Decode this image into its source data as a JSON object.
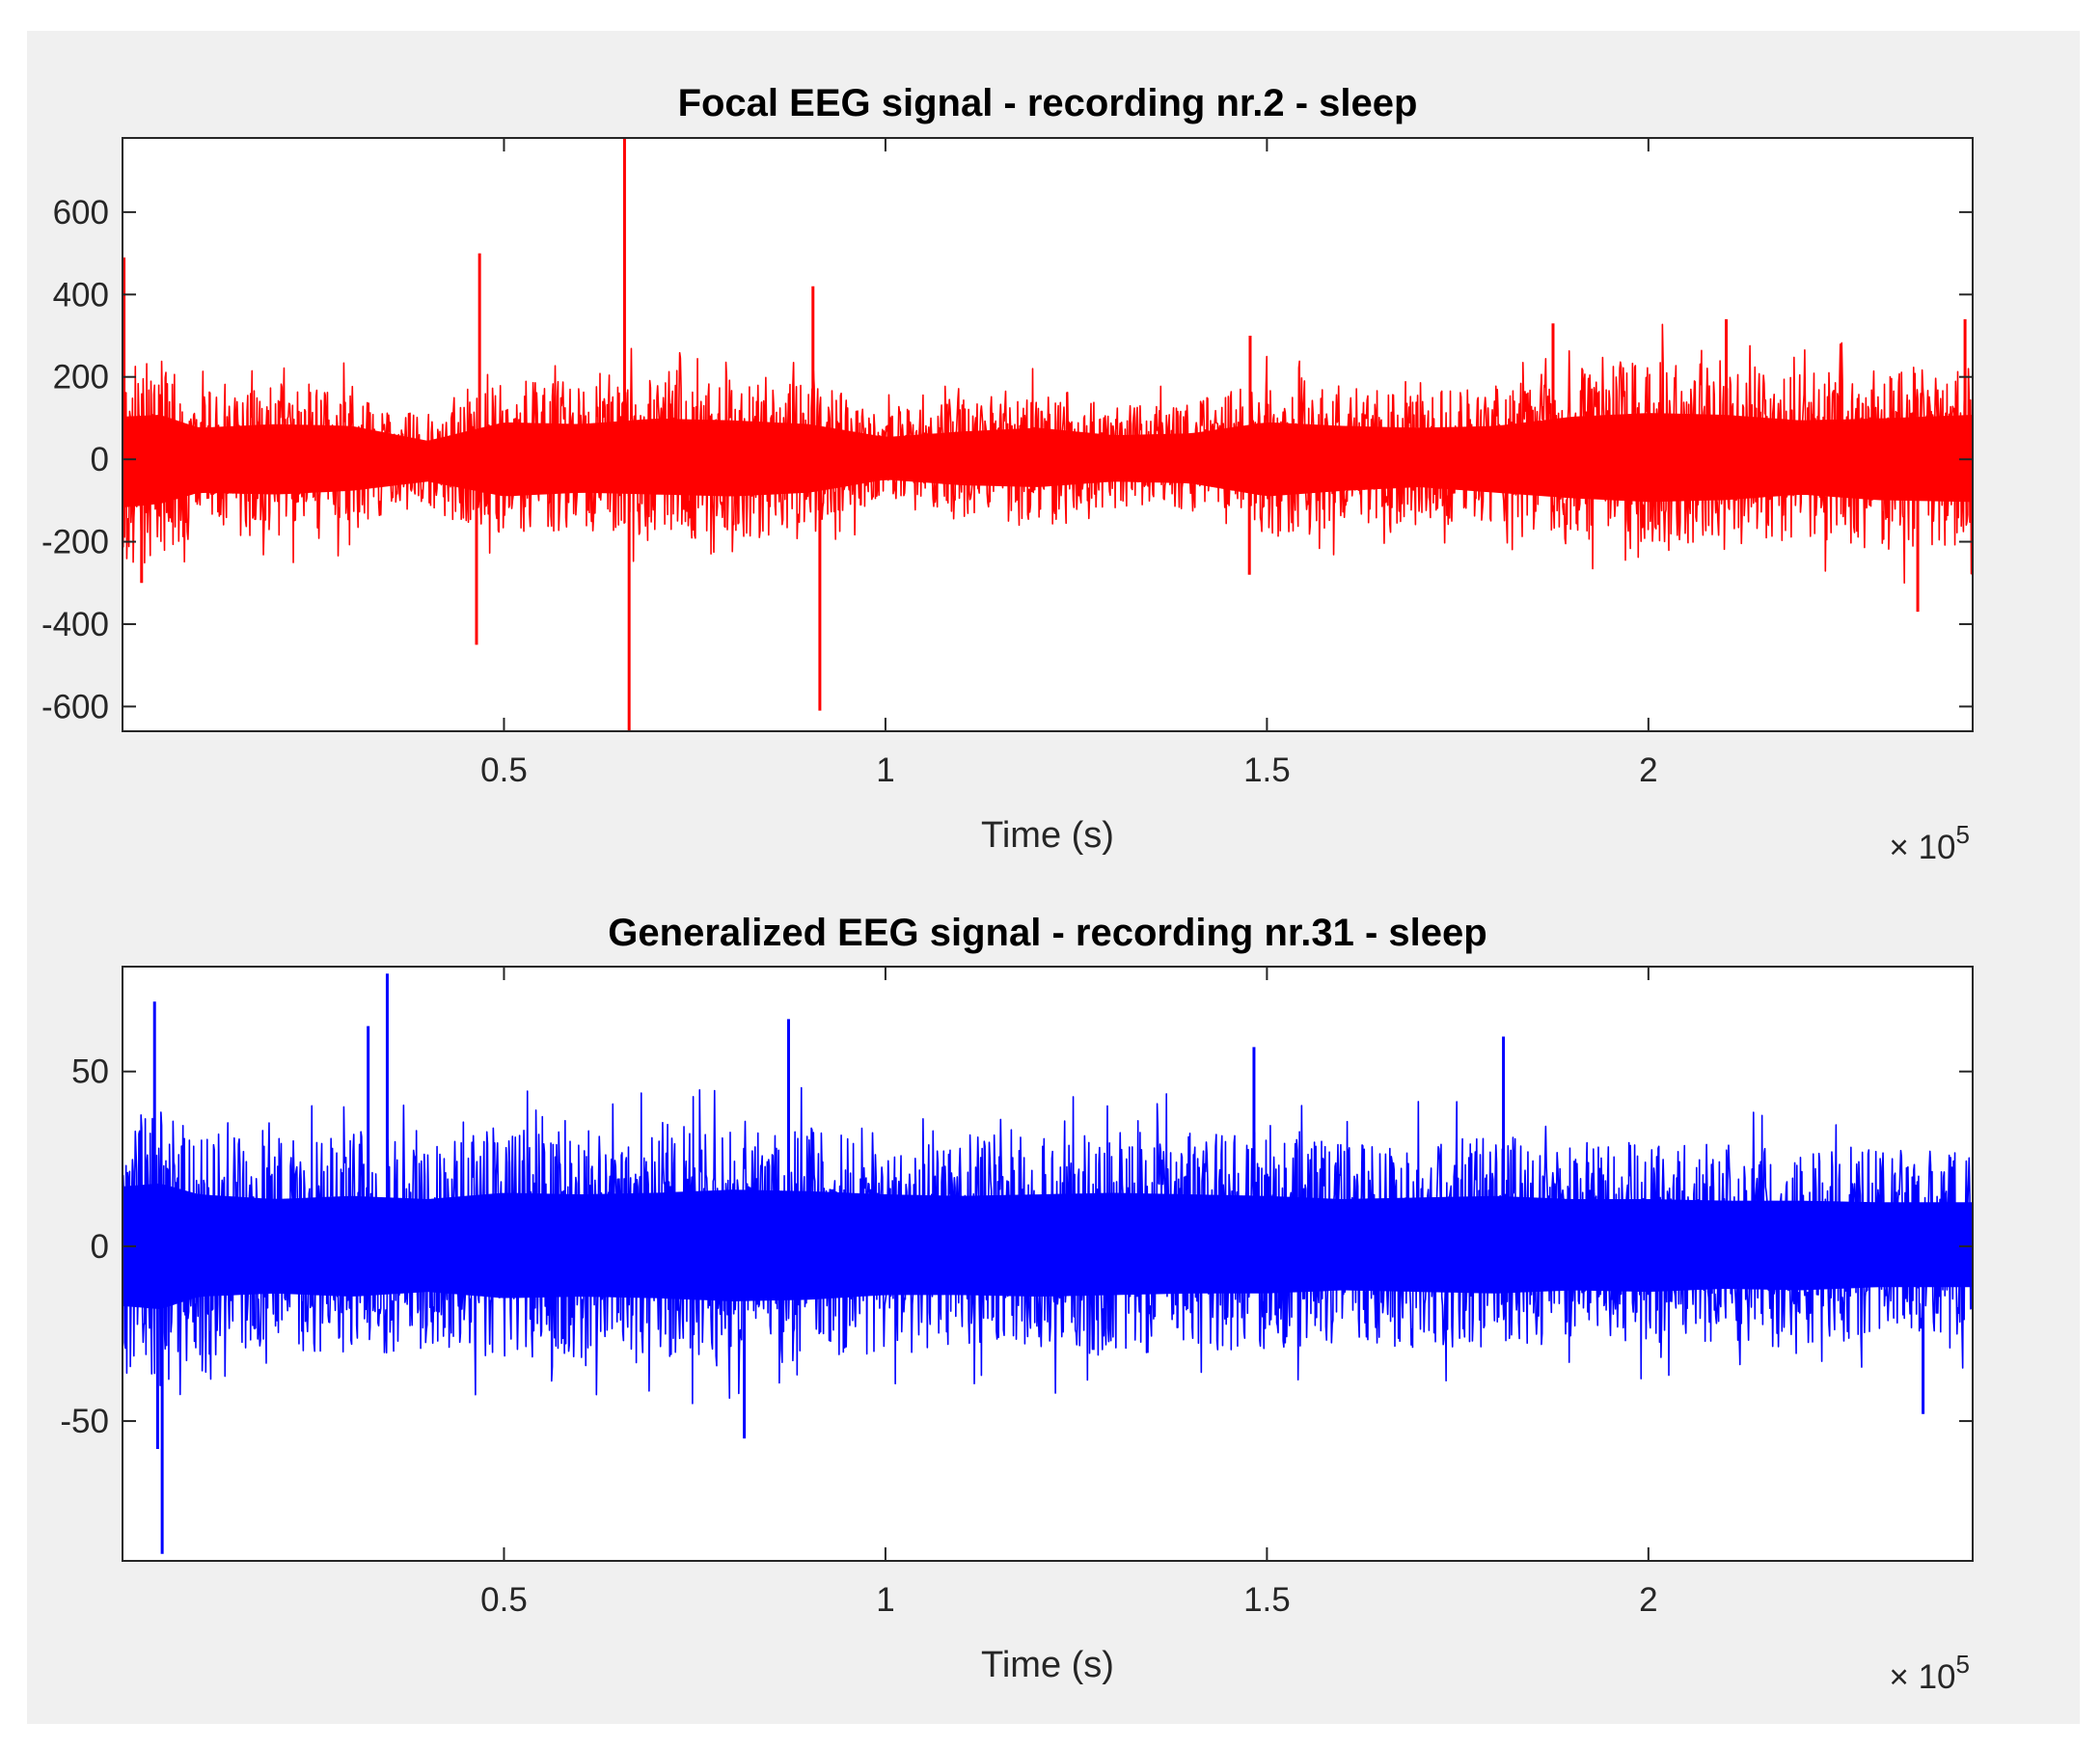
{
  "chart_data": [
    {
      "type": "line",
      "title": "Focal EEG signal - recording nr.2 - sleep",
      "xlabel": "Time (s)",
      "ylabel": "",
      "x_multiplier": {
        "base": "10",
        "exponent": "5"
      },
      "xlim": [
        0,
        242500
      ],
      "ylim": [
        -660,
        780
      ],
      "xticks": [
        50000,
        100000,
        150000,
        200000
      ],
      "xtick_labels": [
        "0.5",
        "1",
        "1.5",
        "2"
      ],
      "yticks": [
        -600,
        -400,
        -200,
        0,
        200,
        400,
        600
      ],
      "ytick_labels": [
        "-600",
        "-400",
        "-200",
        "0",
        "200",
        "400",
        "600"
      ],
      "grid": false,
      "series": [
        {
          "color": "#ff0000",
          "envelope": {
            "x": [
              0,
              5000,
              10000,
              20000,
              30000,
              40000,
              50000,
              60000,
              70000,
              80000,
              90000,
              100000,
              110000,
              120000,
              130000,
              140000,
              150000,
              160000,
              170000,
              180000,
              190000,
              200000,
              210000,
              220000,
              230000,
              242500
            ],
            "upper": [
              230,
              240,
              170,
              190,
              180,
              100,
              200,
              190,
              220,
              210,
              190,
              120,
              150,
              170,
              130,
              140,
              200,
              180,
              170,
              180,
              230,
              250,
              240,
              210,
              220,
              240
            ],
            "lower": [
              -260,
              -240,
              -180,
              -190,
              -170,
              -120,
              -200,
              -180,
              -190,
              -200,
              -180,
              -110,
              -140,
              -150,
              -120,
              -130,
              -200,
              -170,
              -150,
              -180,
              -210,
              -230,
              -220,
              -190,
              -220,
              -230
            ]
          },
          "spikes": [
            {
              "x": 200,
              "y": 490
            },
            {
              "x": 2500,
              "y": -300
            },
            {
              "x": 46800,
              "y": 500
            },
            {
              "x": 46400,
              "y": -450
            },
            {
              "x": 65800,
              "y": 780
            },
            {
              "x": 66400,
              "y": -660
            },
            {
              "x": 90500,
              "y": 420
            },
            {
              "x": 91400,
              "y": -610
            },
            {
              "x": 147800,
              "y": 300
            },
            {
              "x": 147700,
              "y": -280
            },
            {
              "x": 187500,
              "y": 330
            },
            {
              "x": 210200,
              "y": 340
            },
            {
              "x": 235300,
              "y": -370
            },
            {
              "x": 241500,
              "y": 340
            }
          ]
        }
      ]
    },
    {
      "type": "line",
      "title": "Generalized EEG signal - recording nr.31 - sleep",
      "xlabel": "Time (s)",
      "ylabel": "",
      "x_multiplier": {
        "base": "10",
        "exponent": "5"
      },
      "xlim": [
        0,
        242500
      ],
      "ylim": [
        -90,
        80
      ],
      "xticks": [
        50000,
        100000,
        150000,
        200000
      ],
      "xtick_labels": [
        "0.5",
        "1",
        "1.5",
        "2"
      ],
      "yticks": [
        -50,
        0,
        50
      ],
      "ytick_labels": [
        "-50",
        "0",
        "50"
      ],
      "grid": false,
      "series": [
        {
          "color": "#0000ff",
          "envelope": {
            "x": [
              0,
              5000,
              10000,
              20000,
              30000,
              40000,
              50000,
              60000,
              70000,
              80000,
              90000,
              100000,
              110000,
              120000,
              130000,
              140000,
              150000,
              160000,
              170000,
              180000,
              190000,
              200000,
              210000,
              220000,
              230000,
              242500
            ],
            "upper": [
              38,
              40,
              33,
              30,
              32,
              30,
              34,
              33,
              34,
              36,
              35,
              33,
              32,
              33,
              34,
              33,
              32,
              30,
              31,
              32,
              30,
              30,
              29,
              29,
              28,
              28
            ],
            "lower": [
              -38,
              -40,
              -32,
              -30,
              -32,
              -29,
              -33,
              -32,
              -33,
              -35,
              -34,
              -31,
              -31,
              -32,
              -31,
              -30,
              -30,
              -28,
              -29,
              -30,
              -28,
              -29,
              -27,
              -28,
              -26,
              -26
            ]
          },
          "spikes": [
            {
              "x": 4200,
              "y": 70
            },
            {
              "x": 5200,
              "y": -88
            },
            {
              "x": 4600,
              "y": -58
            },
            {
              "x": 34700,
              "y": 78
            },
            {
              "x": 32200,
              "y": 63
            },
            {
              "x": 81500,
              "y": -55
            },
            {
              "x": 87300,
              "y": 65
            },
            {
              "x": 148300,
              "y": 57
            },
            {
              "x": 181000,
              "y": 60
            },
            {
              "x": 236000,
              "y": -48
            }
          ]
        }
      ]
    }
  ]
}
